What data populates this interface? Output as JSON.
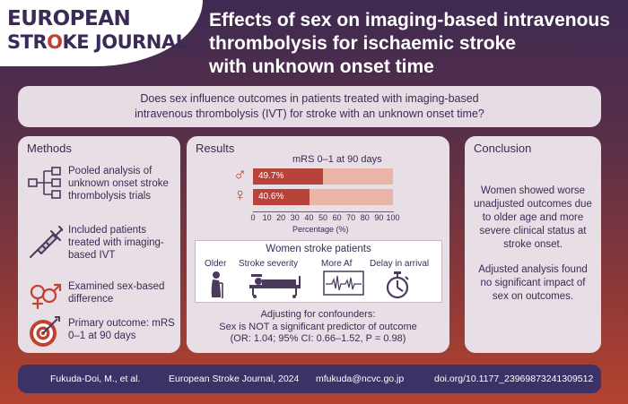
{
  "logo": {
    "line1": "EUROPEAN",
    "line2_pre": "STR",
    "line2_o": "O",
    "line2_post": "KE JOURNAL"
  },
  "title": {
    "line1": "Effects of sex on imaging-based intravenous",
    "line2": "thrombolysis for ischaemic stroke",
    "line3": "with unknown onset time"
  },
  "question": {
    "line1": "Does sex influence outcomes in patients treated with imaging-based",
    "line2": "intravenous thrombolysis (IVT) for stroke with an unknown onset time?"
  },
  "methods": {
    "title": "Methods",
    "items": [
      {
        "icon": "network-icon",
        "text": "Pooled analysis of unknown onset stroke thrombolysis trials"
      },
      {
        "icon": "syringe-icon",
        "text": "Included patients treated with imaging-based IVT"
      },
      {
        "icon": "sex-symbols-icon",
        "text": "Examined sex-based difference"
      },
      {
        "icon": "target-icon",
        "text": "Primary outcome: mRS 0–1 at 90 days"
      }
    ]
  },
  "results": {
    "title": "Results",
    "mrs_title": "mRS 0–1 at 90 days",
    "male_symbol": "♂",
    "female_symbol": "♀",
    "women_title": "Women stroke patients",
    "women_items": [
      "Older",
      "Stroke severity",
      "More Af",
      "Delay in arrival"
    ],
    "adjust_line1": "Adjusting for confounders:",
    "adjust_line2": "Sex is NOT a significant predictor of outcome",
    "adjust_line3": "(OR: 1.04; 95% CI: 0.66–1.52, P = 0.98)"
  },
  "chart_data": {
    "type": "bar",
    "orientation": "horizontal",
    "categories": [
      "♂",
      "♀"
    ],
    "values": [
      49.7,
      40.6
    ],
    "data_labels": [
      "49.7%",
      "40.6%"
    ],
    "title": "mRS 0–1 at 90 days",
    "xlabel": "Percentage (%)",
    "ylabel": "",
    "xlim": [
      0,
      100
    ],
    "ticks": [
      "0",
      "10",
      "20",
      "30",
      "40",
      "50",
      "60",
      "70",
      "80",
      "90",
      "100"
    ],
    "bar_color": "#b8433a",
    "track_color": "#eab4a6"
  },
  "conclusion": {
    "title": "Conclusion",
    "para1": "Women showed worse unadjusted outcomes due to older age and more severe clinical status at stroke onset.",
    "para2": "Adjusted analysis found no significant impact of sex on outcomes."
  },
  "footer": {
    "authors": "Fukuda-Doi, M., et al.",
    "journal": "European Stroke Journal, 2024",
    "email": "mfukuda@ncvc.go.jp",
    "doi": "doi.org/10.1177_23969873241309512"
  },
  "colors": {
    "accent": "#c2412f",
    "navy": "#3b2a55",
    "footer": "#3c3266"
  }
}
